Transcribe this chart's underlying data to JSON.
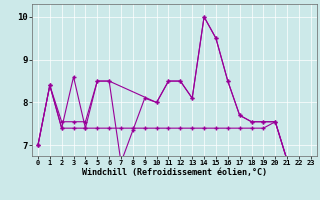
{
  "xlabel": "Windchill (Refroidissement éolien,°C)",
  "xlim": [
    -0.5,
    23.5
  ],
  "ylim": [
    6.75,
    10.3
  ],
  "yticks": [
    7,
    8,
    9,
    10
  ],
  "xticks": [
    0,
    1,
    2,
    3,
    4,
    5,
    6,
    7,
    8,
    9,
    10,
    11,
    12,
    13,
    14,
    15,
    16,
    17,
    18,
    19,
    20,
    21,
    22,
    23
  ],
  "bg_color": "#cce9e9",
  "line_color": "#990099",
  "series": [
    {
      "x": [
        0,
        1,
        2,
        3,
        4,
        5,
        6,
        7,
        8,
        9,
        10,
        11,
        12,
        13,
        14,
        15,
        16,
        17,
        18,
        19,
        20,
        21,
        22,
        23
      ],
      "y": [
        7.0,
        8.4,
        7.4,
        8.6,
        7.4,
        8.5,
        8.5,
        6.6,
        7.35,
        8.1,
        8.0,
        8.5,
        8.5,
        8.1,
        10.0,
        9.5,
        8.5,
        7.7,
        7.55,
        7.55,
        7.55,
        6.65,
        6.65,
        6.65
      ]
    },
    {
      "x": [
        0,
        1,
        2,
        3,
        4,
        5,
        6,
        7,
        8,
        9,
        10,
        11,
        12,
        13,
        14,
        15,
        16,
        17,
        18,
        19,
        20,
        21,
        22,
        23
      ],
      "y": [
        7.0,
        8.4,
        7.4,
        7.4,
        7.4,
        7.4,
        7.4,
        7.4,
        7.4,
        7.4,
        7.4,
        7.4,
        7.4,
        7.4,
        7.4,
        7.4,
        7.4,
        7.4,
        7.4,
        7.4,
        7.55,
        6.65,
        6.65,
        6.65
      ]
    },
    {
      "x": [
        0,
        1,
        2,
        3,
        4,
        5,
        6,
        10,
        11,
        12,
        13,
        14,
        15,
        16,
        17,
        18,
        19,
        20,
        21,
        22,
        23
      ],
      "y": [
        7.0,
        8.4,
        7.55,
        7.55,
        7.55,
        8.5,
        8.5,
        8.0,
        8.5,
        8.5,
        8.1,
        10.0,
        9.5,
        8.5,
        7.7,
        7.55,
        7.55,
        7.55,
        6.65,
        6.65,
        6.65
      ]
    }
  ]
}
